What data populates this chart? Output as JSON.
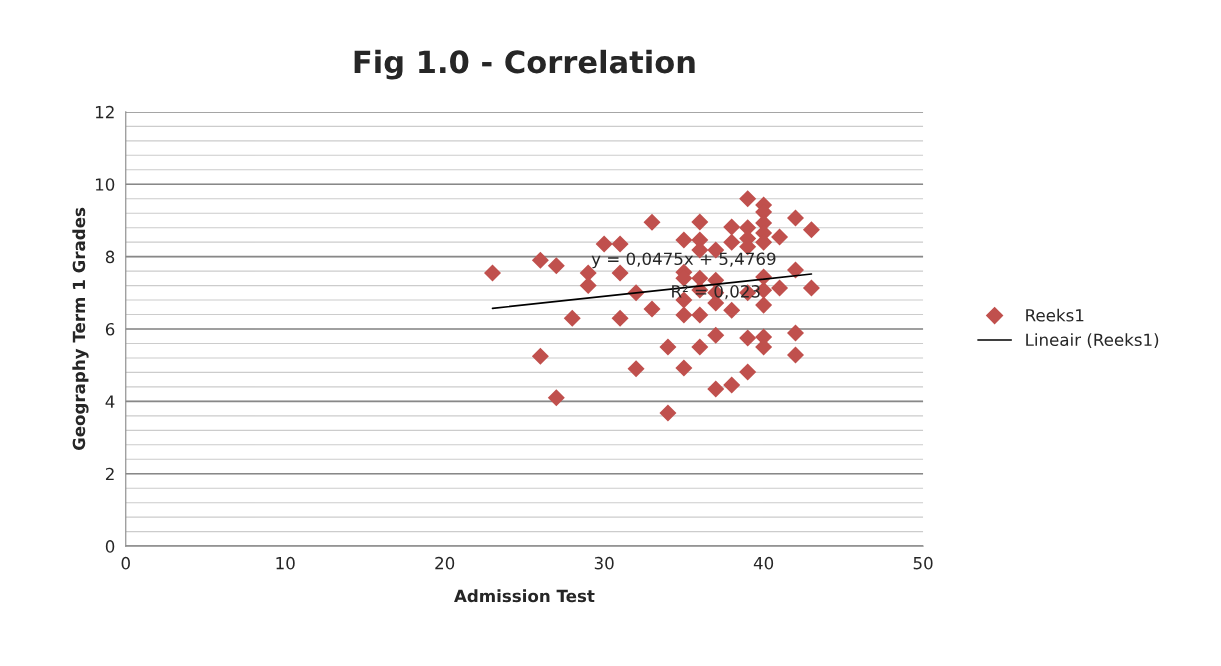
{
  "chart_data": {
    "type": "scatter",
    "title": "Fig 1.0 - Correlation",
    "xlabel": "Admission Test",
    "ylabel": "Geography Term 1 Grades",
    "xlim": [
      0,
      50
    ],
    "xticks": [
      0,
      10,
      20,
      30,
      40,
      50
    ],
    "ylim": [
      0,
      12
    ],
    "yticks": [
      0,
      2,
      4,
      6,
      8,
      10,
      12
    ],
    "grid": "y",
    "legend": "right",
    "annotations": [
      {
        "text": "y = 0,0475x + 5,4769",
        "x": 35,
        "y": 7.9
      },
      {
        "text": "R² = 0,023",
        "x": 37,
        "y": 7.0
      }
    ],
    "series": [
      {
        "name": "Reeks1",
        "marker": "diamond",
        "color": "#c0504d",
        "x": [
          23,
          26,
          27,
          26,
          27,
          28,
          29,
          29,
          30,
          31,
          31,
          31,
          32,
          33,
          33,
          32,
          34,
          34,
          39,
          40,
          40,
          42,
          36,
          43,
          38,
          39,
          40,
          40,
          41,
          35,
          36,
          36,
          37,
          38,
          39,
          39,
          40,
          35,
          35,
          36,
          37,
          36,
          37,
          39,
          40,
          41,
          42,
          43,
          40,
          37,
          38,
          40,
          35,
          36,
          35,
          37,
          39,
          40,
          40,
          42,
          42,
          36,
          35,
          39,
          38,
          37
        ],
        "values": [
          7.55,
          7.9,
          7.75,
          5.25,
          4.1,
          6.3,
          7.55,
          7.2,
          8.35,
          8.35,
          7.55,
          6.3,
          4.9,
          8.95,
          6.55,
          7.0,
          5.5,
          3.68,
          9.6,
          9.43,
          9.23,
          9.07,
          8.96,
          8.74,
          8.82,
          8.8,
          8.93,
          8.65,
          8.54,
          8.46,
          8.46,
          8.18,
          8.18,
          8.4,
          8.5,
          8.27,
          8.4,
          7.57,
          7.4,
          7.4,
          7.35,
          7.08,
          7.0,
          7.0,
          7.07,
          7.13,
          7.63,
          7.13,
          7.44,
          6.72,
          6.52,
          6.66,
          6.39,
          6.39,
          6.8,
          5.83,
          5.75,
          5.78,
          5.5,
          5.89,
          5.28,
          5.5,
          4.92,
          4.81,
          4.45,
          4.34
        ]
      },
      {
        "name": "Lineair (Reeks1)",
        "type": "line",
        "marker": "none",
        "color": "#000000",
        "x": [
          23,
          43
        ],
        "values": [
          6.57,
          7.52
        ]
      }
    ]
  }
}
